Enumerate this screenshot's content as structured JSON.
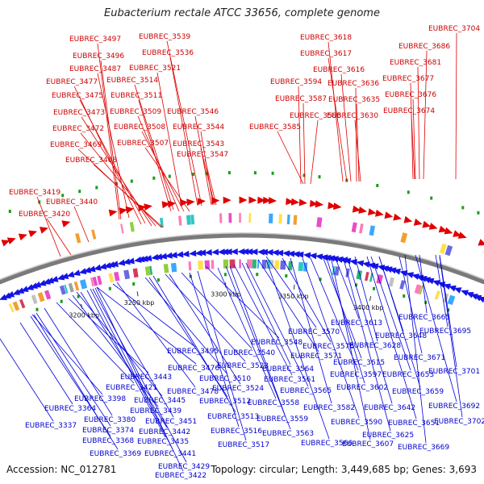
{
  "title": "Eubacterium rectale ATCC 33656, complete genome",
  "footer": {
    "accession": "Accession: NC_012781",
    "summary": "Topology: circular; Length: 3,449,685 bp; Genes: 3,693"
  },
  "ticks": [
    "3200 kbp",
    "3250 kbp",
    "3300 kbp",
    "3350 kbp",
    "3400 kbp"
  ],
  "forward_labels": [
    "EUBREC_3497",
    "EUBREC_3539",
    "EUBREC_3496",
    "EUBREC_3536",
    "EUBREC_3487",
    "EUBREC_3521",
    "EUBREC_3477",
    "EUBREC_3514",
    "EUBREC_3475",
    "EUBREC_3511",
    "EUBREC_3473",
    "EUBREC_3509",
    "EUBREC_3546",
    "EUBREC_3472",
    "EUBREC_3508",
    "EUBREC_3544",
    "EUBREC_3469",
    "EUBREC_3507",
    "EUBREC_3543",
    "EUBREC_3468",
    "EUBREC_3547",
    "EUBREC_3419",
    "EUBREC_3440",
    "EUBREC_3420",
    "EUBREC_3618",
    "EUBREC_3617",
    "EUBREC_3616",
    "EUBREC_3594",
    "EUBREC_3636",
    "EUBREC_3587",
    "EUBREC_3635",
    "EUBREC_3586",
    "EUBREC_3630",
    "EUBREC_3585",
    "EUBREC_3704",
    "EUBREC_3686",
    "EUBREC_3681",
    "EUBREC_3677",
    "EUBREC_3676",
    "EUBREC_3674"
  ],
  "reverse_labels": [
    "EUBREC_3548",
    "EUBREC_3570",
    "EUBREC_3613",
    "EUBREC_3665",
    "EUBREC_3495",
    "EUBREC_3540",
    "EUBREC_3576",
    "EUBREC_3628",
    "EUBREC_3648",
    "EUBREC_3695",
    "EUBREC_3476",
    "EUBREC_3523",
    "EUBREC_3571",
    "EUBREC_3671",
    "EUBREC_3443",
    "EUBREC_3510",
    "EUBREC_3564",
    "EUBREC_3615",
    "EUBREC_3701",
    "EUBREC_3421",
    "EUBREC_3478",
    "EUBREC_3524",
    "EUBREC_3561",
    "EUBREC_3597",
    "EUBREC_3653",
    "EUBREC_3398",
    "EUBREC_3445",
    "EUBREC_3512",
    "EUBREC_3565",
    "EUBREC_3602",
    "EUBREC_3659",
    "EUBREC_3364",
    "EUBREC_3439",
    "EUBREC_3558",
    "EUBREC_3582",
    "EUBREC_3642",
    "EUBREC_3692",
    "EUBREC_3337",
    "EUBREC_3380",
    "EUBREC_3451",
    "EUBREC_3513",
    "EUBREC_3559",
    "EUBREC_3590",
    "EUBREC_3651",
    "EUBREC_3702",
    "EUBREC_3374",
    "EUBREC_3442",
    "EUBREC_3516",
    "EUBREC_3563",
    "EUBREC_3625",
    "EUBREC_3368",
    "EUBREC_3435",
    "EUBREC_3517",
    "EUBREC_3566",
    "EUBREC_3607",
    "EUBREC_3669",
    "EUBREC_3369",
    "EUBREC_3441",
    "EUBREC_3429",
    "EUBREC_3422"
  ],
  "colors": {
    "forward_strand": "#e00000",
    "reverse_strand": "#1414e6",
    "backbone": "#7a7a7a",
    "trna_marker": "#1c9c1c"
  }
}
